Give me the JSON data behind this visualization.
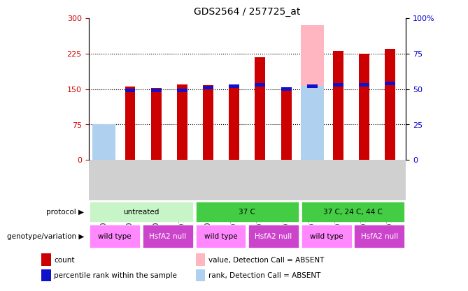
{
  "title": "GDS2564 / 257725_at",
  "samples": [
    "GSM107436",
    "GSM107443",
    "GSM107444",
    "GSM107445",
    "GSM107446",
    "GSM107577",
    "GSM107579",
    "GSM107580",
    "GSM107586",
    "GSM107587",
    "GSM107589",
    "GSM107591"
  ],
  "count_values": [
    0,
    155,
    153,
    160,
    158,
    160,
    218,
    151,
    0,
    230,
    225,
    235
  ],
  "rank_values": [
    0,
    49,
    49,
    49,
    51,
    52,
    53,
    50,
    52,
    53,
    53,
    54
  ],
  "absent_value_values": [
    65,
    0,
    0,
    0,
    0,
    0,
    0,
    0,
    285,
    0,
    0,
    0
  ],
  "absent_rank_values": [
    25,
    0,
    0,
    0,
    0,
    0,
    0,
    0,
    52,
    0,
    0,
    0
  ],
  "count_color": "#cc0000",
  "rank_color": "#1111cc",
  "absent_value_color": "#ffb6c1",
  "absent_rank_color": "#b0d0f0",
  "ylim_left": [
    0,
    300
  ],
  "ylim_right": [
    0,
    100
  ],
  "yticks_left": [
    0,
    75,
    150,
    225,
    300
  ],
  "yticks_right": [
    0,
    25,
    50,
    75,
    100
  ],
  "ytick_labels_right": [
    "0",
    "25",
    "50",
    "75",
    "100%"
  ],
  "bar_width": 0.4,
  "protocol_label": "protocol",
  "genotype_label": "genotype/variation",
  "legend_items": [
    {
      "label": "count",
      "color": "#cc0000"
    },
    {
      "label": "percentile rank within the sample",
      "color": "#1111cc"
    },
    {
      "label": "value, Detection Call = ABSENT",
      "color": "#ffb6c1"
    },
    {
      "label": "rank, Detection Call = ABSENT",
      "color": "#b0d0f0"
    }
  ],
  "proto_defs": [
    {
      "start": 0,
      "end": 4,
      "label": "untreated",
      "color": "#c8f5c8"
    },
    {
      "start": 4,
      "end": 8,
      "label": "37 C",
      "color": "#44cc44"
    },
    {
      "start": 8,
      "end": 12,
      "label": "37 C, 24 C, 44 C",
      "color": "#44cc44"
    }
  ],
  "geno_defs": [
    {
      "start": 0,
      "end": 2,
      "label": "wild type",
      "color": "#ff88ff"
    },
    {
      "start": 2,
      "end": 4,
      "label": "HsfA2 null",
      "color": "#cc44cc"
    },
    {
      "start": 4,
      "end": 6,
      "label": "wild type",
      "color": "#ff88ff"
    },
    {
      "start": 6,
      "end": 8,
      "label": "HsfA2 null",
      "color": "#cc44cc"
    },
    {
      "start": 8,
      "end": 10,
      "label": "wild type",
      "color": "#ff88ff"
    },
    {
      "start": 10,
      "end": 12,
      "label": "HsfA2 null",
      "color": "#cc44cc"
    }
  ]
}
